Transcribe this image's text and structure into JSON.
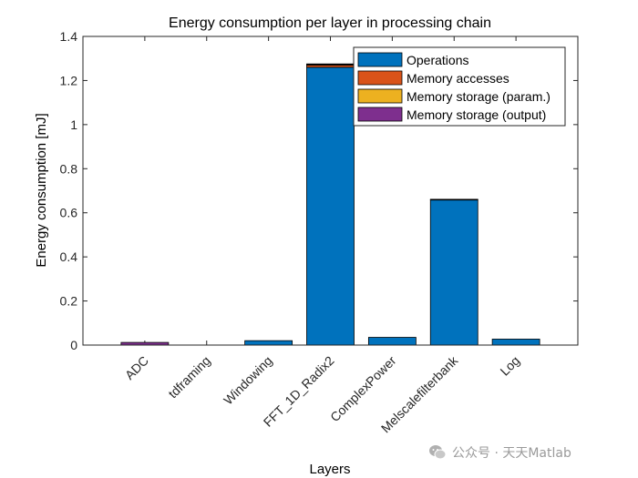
{
  "chart_data": {
    "type": "bar",
    "stacked": true,
    "title": "Energy consumption per layer in processing chain",
    "xlabel": "Layers",
    "ylabel": "Energy consumption [mJ]",
    "ylim": [
      0,
      1.4
    ],
    "yticks": [
      "0",
      "0.2",
      "0.4",
      "0.6",
      "0.8",
      "1",
      "1.2",
      "1.4"
    ],
    "categories": [
      "ADC",
      "tdframing",
      "Windowing",
      "FFT_1D_Radix2",
      "ComplexPower",
      "Melscalefilterbank",
      "Log"
    ],
    "series": [
      {
        "name": "Operations",
        "color": "#0072BD",
        "values": [
          0.0,
          0.0,
          0.02,
          1.26,
          0.035,
          0.658,
          0.027
        ]
      },
      {
        "name": "Memory accesses",
        "color": "#D95319",
        "values": [
          0.0,
          0.0,
          0.0,
          0.01,
          0.0,
          0.002,
          0.0
        ]
      },
      {
        "name": "Memory storage (param.)",
        "color": "#EDB120",
        "values": [
          0.0,
          0.0,
          0.0,
          0.002,
          0.0,
          0.0,
          0.0
        ]
      },
      {
        "name": "Memory storage (output)",
        "color": "#7E2F8E",
        "values": [
          0.012,
          0.0,
          0.0,
          0.001,
          0.0,
          0.0,
          0.0
        ]
      }
    ],
    "legend_position": "top-right"
  },
  "watermark": {
    "text": "公众号 · 天天Matlab",
    "icon": "wechat-icon"
  }
}
